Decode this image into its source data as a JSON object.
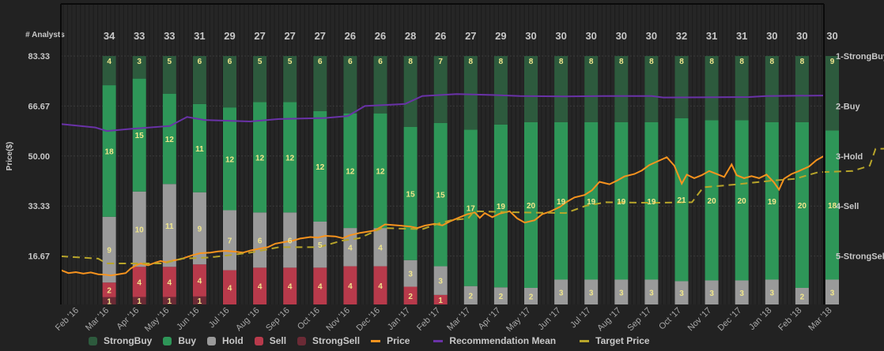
{
  "chart_data": {
    "type": "bar",
    "title": "",
    "left_axis": {
      "label": "Price($)",
      "ticks": [
        "83.33",
        "66.67",
        "50.00",
        "33.33",
        "16.67"
      ],
      "tick_values": [
        83.33,
        66.67,
        50.0,
        33.33,
        16.67
      ],
      "range": [
        0,
        83.33
      ]
    },
    "right_axis": {
      "ticks": [
        "1-StrongBuy",
        "2-Buy",
        "3-Hold",
        "4-Sell",
        "5-StrongSell"
      ],
      "tick_values": [
        1,
        2,
        3,
        4,
        5
      ],
      "range": [
        1,
        6.25
      ]
    },
    "analysts_label": "# Analysts",
    "x_labels": [
      "Feb '16",
      "Mar '16",
      "Apr '16",
      "May '16",
      "Jun '16",
      "Jul '16",
      "Aug '16",
      "Sep '16",
      "Oct '16",
      "Nov '16",
      "Dec '16",
      "Jan '17",
      "Feb '17",
      "Mar '17",
      "Apr '17",
      "May '17",
      "Jun '17",
      "Jul '17",
      "Aug '17",
      "Sep '17",
      "Oct '17",
      "Nov '17",
      "Dec '17",
      "Jan '18",
      "Feb '18",
      "Mar '18"
    ],
    "categories": [
      "Mar '16",
      "Apr '16",
      "May '16",
      "Jun '16",
      "Jul '16",
      "Aug '16",
      "Sep '16",
      "Oct '16",
      "Nov '16",
      "Dec '16",
      "Jan '17",
      "Feb '17",
      "Mar '17",
      "Apr '17",
      "May '17",
      "Jun '17",
      "Jul '17",
      "Aug '17",
      "Sep '17",
      "Oct '17",
      "Nov '17",
      "Dec '17",
      "Jan '18",
      "Feb '18",
      "Mar '18"
    ],
    "analysts": [
      34,
      33,
      33,
      31,
      29,
      27,
      27,
      27,
      26,
      26,
      28,
      26,
      27,
      29,
      30,
      30,
      30,
      30,
      30,
      32,
      31,
      31,
      30,
      30,
      30
    ],
    "series": [
      {
        "name": "StrongBuy",
        "color": "#2d5a3d",
        "values": [
          4,
          3,
          5,
          6,
          6,
          5,
          5,
          6,
          6,
          6,
          8,
          7,
          8,
          8,
          8,
          8,
          8,
          8,
          8,
          8,
          8,
          8,
          8,
          8,
          9
        ]
      },
      {
        "name": "Buy",
        "color": "#2e9658",
        "values": [
          18,
          15,
          12,
          11,
          12,
          12,
          12,
          12,
          12,
          12,
          15,
          15,
          17,
          19,
          20,
          19,
          19,
          19,
          19,
          21,
          20,
          20,
          19,
          20,
          18
        ]
      },
      {
        "name": "Hold",
        "color": "#9a9a9a",
        "values": [
          9,
          10,
          11,
          9,
          7,
          6,
          6,
          5,
          4,
          4,
          3,
          3,
          2,
          2,
          2,
          3,
          3,
          3,
          3,
          3,
          3,
          3,
          3,
          2,
          3
        ]
      },
      {
        "name": "Sell",
        "color": "#b83a4b",
        "values": [
          2,
          4,
          4,
          4,
          4,
          4,
          4,
          4,
          4,
          4,
          2,
          1,
          0,
          0,
          0,
          0,
          0,
          0,
          0,
          0,
          0,
          0,
          0,
          0,
          0
        ]
      },
      {
        "name": "StrongSell",
        "color": "#6b2a35",
        "values": [
          1,
          1,
          1,
          1,
          0,
          0,
          0,
          0,
          0,
          0,
          0,
          0,
          0,
          0,
          0,
          0,
          0,
          0,
          0,
          0,
          0,
          0,
          0,
          0,
          0
        ]
      }
    ],
    "lines": [
      {
        "name": "Price",
        "color": "#f7931e",
        "axis": "left",
        "points": [
          [
            0,
            12.0
          ],
          [
            0.3,
            11.0
          ],
          [
            0.6,
            11.3
          ],
          [
            0.9,
            10.8
          ],
          [
            1.2,
            11.2
          ],
          [
            1.5,
            10.6
          ],
          [
            1.8,
            10.4
          ],
          [
            2.0,
            10.2
          ],
          [
            2.3,
            10.6
          ],
          [
            2.6,
            11.0
          ],
          [
            2.8,
            12.5
          ],
          [
            3.0,
            13.5
          ],
          [
            3.2,
            14.2
          ],
          [
            3.5,
            13.6
          ],
          [
            3.8,
            14.5
          ],
          [
            4.0,
            15.0
          ],
          [
            4.2,
            14.6
          ],
          [
            4.5,
            15.2
          ],
          [
            4.8,
            15.6
          ],
          [
            5.0,
            16.2
          ],
          [
            5.3,
            17.0
          ],
          [
            5.6,
            17.6
          ],
          [
            6.0,
            17.8
          ],
          [
            6.3,
            18.2
          ],
          [
            6.6,
            18.4
          ],
          [
            7.0,
            18.1
          ],
          [
            7.3,
            17.8
          ],
          [
            7.6,
            18.5
          ],
          [
            8.0,
            19.2
          ],
          [
            8.3,
            19.6
          ],
          [
            8.6,
            20.8
          ],
          [
            9.0,
            21.4
          ],
          [
            9.3,
            21.8
          ],
          [
            9.6,
            22.5
          ],
          [
            10.0,
            23.0
          ],
          [
            10.3,
            22.8
          ],
          [
            10.6,
            23.4
          ],
          [
            11.0,
            23.2
          ],
          [
            11.3,
            22.6
          ],
          [
            11.6,
            23.6
          ],
          [
            12.0,
            24.4
          ],
          [
            12.3,
            24.8
          ],
          [
            12.6,
            25.2
          ],
          [
            13.0,
            27.2
          ],
          [
            13.3,
            27.0
          ],
          [
            13.6,
            26.8
          ],
          [
            14.0,
            26.5
          ],
          [
            14.3,
            26.0
          ],
          [
            14.6,
            26.8
          ],
          [
            15.0,
            27.4
          ],
          [
            15.3,
            26.9
          ],
          [
            15.6,
            28.2
          ],
          [
            16.0,
            29.6
          ],
          [
            16.3,
            30.6
          ],
          [
            16.6,
            31.2
          ],
          [
            16.8,
            29.4
          ],
          [
            17.0,
            31.0
          ],
          [
            17.3,
            29.6
          ],
          [
            17.6,
            30.8
          ],
          [
            18.0,
            31.6
          ],
          [
            18.3,
            29.2
          ],
          [
            18.6,
            27.8
          ],
          [
            19.0,
            28.6
          ],
          [
            19.3,
            30.6
          ],
          [
            19.6,
            31.4
          ],
          [
            20.0,
            33.0
          ],
          [
            20.3,
            34.8
          ],
          [
            20.6,
            36.2
          ],
          [
            21.0,
            37.0
          ],
          [
            21.3,
            38.6
          ],
          [
            21.6,
            41.4
          ],
          [
            22.0,
            40.6
          ],
          [
            22.3,
            41.8
          ],
          [
            22.6,
            43.2
          ],
          [
            23.0,
            44.0
          ],
          [
            23.3,
            45.2
          ],
          [
            23.6,
            47.0
          ],
          [
            24.0,
            48.5
          ],
          [
            24.3,
            49.6
          ],
          [
            24.6,
            46.8
          ],
          [
            24.9,
            40.8
          ],
          [
            25.1,
            43.8
          ],
          [
            25.4,
            42.6
          ],
          [
            25.7,
            43.6
          ],
          [
            26.0,
            45.0
          ],
          [
            26.3,
            44.0
          ],
          [
            26.6,
            43.0
          ],
          [
            26.9,
            47.2
          ],
          [
            27.1,
            43.6
          ],
          [
            27.4,
            42.6
          ],
          [
            27.7,
            43.3
          ],
          [
            28.0,
            42.6
          ],
          [
            28.3,
            43.8
          ],
          [
            28.6,
            41.2
          ],
          [
            28.8,
            38.8
          ],
          [
            29.0,
            42.4
          ],
          [
            29.3,
            44.0
          ],
          [
            29.6,
            45.0
          ],
          [
            30.0,
            46.5
          ],
          [
            30.3,
            48.6
          ],
          [
            30.6,
            50.0
          ]
        ],
        "x_note": "x in bar-index units relative to Feb '16 start"
      },
      {
        "name": "Recommendation Mean",
        "color": "#6a32a8",
        "axis": "right",
        "points": [
          [
            0,
            2.36
          ],
          [
            1.2,
            2.43
          ],
          [
            1.6,
            2.5
          ],
          [
            2.4,
            2.46
          ],
          [
            3.8,
            2.4
          ],
          [
            4.4,
            2.22
          ],
          [
            5.0,
            2.28
          ],
          [
            6.6,
            2.31
          ],
          [
            7.6,
            2.26
          ],
          [
            9.2,
            2.24
          ],
          [
            10.0,
            2.2
          ],
          [
            10.6,
            2.0
          ],
          [
            12.0,
            1.96
          ],
          [
            12.6,
            1.8
          ],
          [
            13.8,
            1.76
          ],
          [
            15.0,
            1.78
          ],
          [
            16.0,
            1.8
          ],
          [
            17.6,
            1.81
          ],
          [
            19.0,
            1.8
          ],
          [
            20.6,
            1.8
          ],
          [
            21.0,
            1.83
          ],
          [
            24.0,
            1.82
          ],
          [
            24.6,
            1.8
          ],
          [
            26.6,
            1.79
          ]
        ],
        "x_note": "x in month units from Feb '16"
      },
      {
        "name": "Target Price",
        "color": "#b8a52a",
        "axis": "left",
        "dashed": true,
        "points": [
          [
            0,
            16.6
          ],
          [
            1.3,
            15.8
          ],
          [
            1.6,
            14.2
          ],
          [
            3.6,
            14.2
          ],
          [
            4.2,
            15.8
          ],
          [
            5.2,
            16.2
          ],
          [
            6.6,
            17.8
          ],
          [
            7.6,
            19.6
          ],
          [
            9.0,
            19.6
          ],
          [
            9.8,
            21.8
          ],
          [
            10.4,
            22.6
          ],
          [
            11.2,
            26.0
          ],
          [
            12.6,
            25.6
          ],
          [
            13.2,
            27.6
          ],
          [
            13.6,
            28.6
          ],
          [
            14.2,
            29.2
          ],
          [
            14.4,
            31.6
          ],
          [
            16.0,
            31.2
          ],
          [
            17.6,
            31.0
          ],
          [
            18.3,
            33.4
          ],
          [
            19.0,
            34.6
          ],
          [
            20.6,
            34.4
          ],
          [
            22.0,
            34.6
          ],
          [
            22.4,
            39.6
          ],
          [
            23.4,
            40.4
          ],
          [
            24.8,
            41.8
          ],
          [
            25.6,
            42.4
          ],
          [
            26.4,
            44.6
          ],
          [
            27.6,
            45.0
          ],
          [
            28.2,
            46.8
          ],
          [
            28.4,
            52.4
          ],
          [
            30.6,
            52.8
          ]
        ],
        "x_note": "x in month units from Feb '16"
      }
    ],
    "legend": [
      "StrongBuy",
      "Buy",
      "Hold",
      "Sell",
      "StrongSell",
      "Price",
      "Recommendation Mean",
      "Target Price"
    ],
    "legend_position": "bottom",
    "grid": true
  }
}
